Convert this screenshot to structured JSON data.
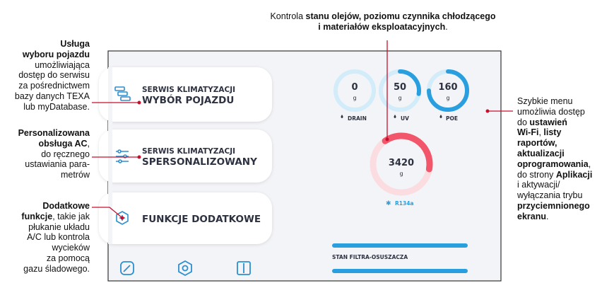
{
  "annotations": [
    {
      "lines": [
        [
          {
            "text": "Kontrola ",
            "bold": false
          },
          {
            "text": "stanu olejów, poziomu czynnika chłodzącego",
            "bold": true
          }
        ],
        [
          {
            "text": "i materiałów eksploatacyjnych",
            "bold": true
          },
          {
            "text": ".",
            "bold": false
          }
        ]
      ]
    },
    {
      "lines": [
        [
          {
            "text": "Usługa",
            "bold": true
          }
        ],
        [
          {
            "text": "wyboru pojazdu",
            "bold": true
          }
        ],
        [
          {
            "text": "umożliwiająca",
            "bold": false
          }
        ],
        [
          {
            "text": "dostęp do serwisu",
            "bold": false
          }
        ],
        [
          {
            "text": "za pośrednictwem",
            "bold": false
          }
        ],
        [
          {
            "text": "bazy danych TEXA",
            "bold": false
          }
        ],
        [
          {
            "text": "lub myDatabase.",
            "bold": false
          }
        ]
      ]
    },
    {
      "lines": [
        [
          {
            "text": "Personalizowana",
            "bold": true
          }
        ],
        [
          {
            "text": "obsługa AC",
            "bold": true
          },
          {
            "text": ",",
            "bold": false
          }
        ],
        [
          {
            "text": "do ręcznego",
            "bold": false
          }
        ],
        [
          {
            "text": "ustawiania para-",
            "bold": false
          }
        ],
        [
          {
            "text": "metrów",
            "bold": false
          }
        ]
      ]
    },
    {
      "lines": [
        [
          {
            "text": "Dodatkowe",
            "bold": true
          }
        ],
        [
          {
            "text": "funkcje",
            "bold": true
          },
          {
            "text": ", takie jak",
            "bold": false
          }
        ],
        [
          {
            "text": "płukanie układu",
            "bold": false
          }
        ],
        [
          {
            "text": "A/C lub kontrola",
            "bold": false
          }
        ],
        [
          {
            "text": "wycieków",
            "bold": false
          }
        ],
        [
          {
            "text": "za pomocą",
            "bold": false
          }
        ],
        [
          {
            "text": "gazu śladowego.",
            "bold": false
          }
        ]
      ]
    },
    {
      "lines": [
        [
          {
            "text": "Szybkie menu",
            "bold": false
          }
        ],
        [
          {
            "text": "umożliwia dostęp",
            "bold": false
          }
        ],
        [
          {
            "text": "do ",
            "bold": false
          },
          {
            "text": "ustawień",
            "bold": true
          }
        ],
        [
          {
            "text": "Wi-Fi",
            "bold": true
          },
          {
            "text": ", ",
            "bold": false
          },
          {
            "text": "listy",
            "bold": true
          }
        ],
        [
          {
            "text": "raportów,",
            "bold": true
          }
        ],
        [
          {
            "text": "aktualizacji",
            "bold": true
          }
        ],
        [
          {
            "text": "oprogramowania",
            "bold": true
          },
          {
            "text": ",",
            "bold": false
          }
        ],
        [
          {
            "text": "do strony ",
            "bold": false
          },
          {
            "text": "Aplikacji",
            "bold": true
          }
        ],
        [
          {
            "text": "i aktywacji/",
            "bold": false
          }
        ],
        [
          {
            "text": "wyłączania trybu",
            "bold": false
          }
        ],
        [
          {
            "text": "przyciemnionego",
            "bold": true
          }
        ],
        [
          {
            "text": "ekranu",
            "bold": true
          },
          {
            "text": ".",
            "bold": false
          }
        ]
      ]
    }
  ],
  "screen": {
    "buttons": [
      {
        "subtitle": "SERWIS KLIMATYZACJI",
        "title": "WYBÓR POJAZDU"
      },
      {
        "subtitle": "SERWIS KLIMATYZACJI",
        "title": "SPERSONALIZOWANY"
      },
      {
        "title": "FUNKCJE DODATKOWE"
      }
    ],
    "gauges": [
      {
        "value": 0,
        "unit": "g",
        "label": "DRAIN"
      },
      {
        "value": 50,
        "unit": "g",
        "label": "UV"
      },
      {
        "value": 160,
        "unit": "g",
        "label": "POE"
      }
    ],
    "main_gauge": {
      "value": 3420,
      "unit": "g",
      "label": "R134a"
    },
    "status": "STAN FILTRA-OSUSZACZA"
  }
}
